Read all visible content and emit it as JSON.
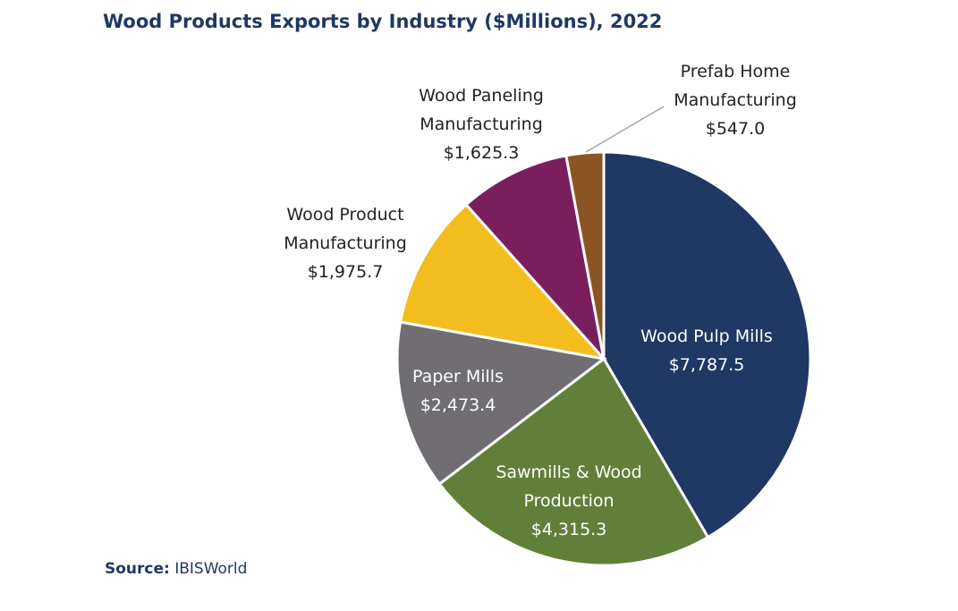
{
  "chart_data": {
    "type": "pie",
    "title": "Wood Products Exports by Industry ($Millions), 2022",
    "categories": [
      "Wood Pulp Mills",
      "Sawmills & Wood Production",
      "Paper Mills",
      "Wood Product Manufacturing",
      "Wood Paneling Manufacturing",
      "Prefab Home Manufacturing"
    ],
    "values": [
      7787.5,
      4315.3,
      2473.4,
      1975.7,
      1625.3,
      547.0
    ],
    "value_labels": [
      "$7,787.5",
      "$4,315.3",
      "$2,473.4",
      "$1,975.7",
      "$1,625.3",
      "$547.0"
    ],
    "colors": [
      "#1f3864",
      "#607f38",
      "#716e73",
      "#f3bc1f",
      "#7a1e5e",
      "#8b5523"
    ],
    "source_label": "Source:",
    "source": "IBISWorld"
  }
}
